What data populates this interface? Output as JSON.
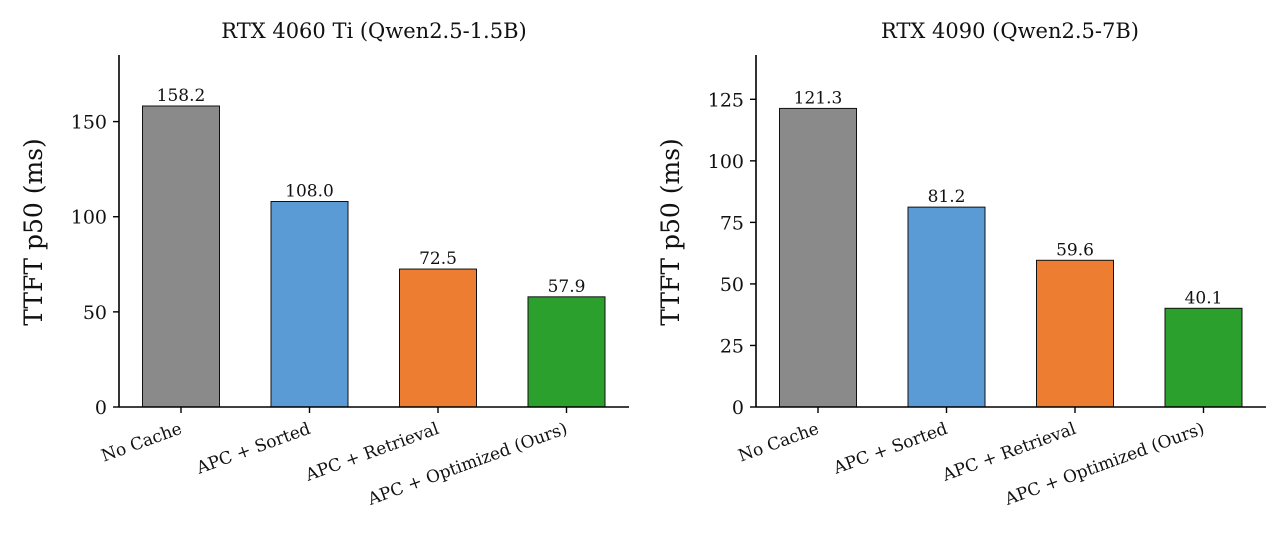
{
  "chart_data": [
    {
      "type": "bar",
      "title": "RTX 4060 Ti (Qwen2.5-1.5B)",
      "xlabel": "",
      "ylabel": "TTFT p50 (ms)",
      "categories": [
        "No Cache",
        "APC + Sorted",
        "APC + Retrieval",
        "APC + Optimized (Ours)"
      ],
      "values": [
        158.2,
        108.0,
        72.5,
        57.9
      ],
      "value_labels": [
        "158.2",
        "108.0",
        "72.5",
        "57.9"
      ],
      "colors": [
        "#8a8a8a",
        "#5b9bd5",
        "#ed7d31",
        "#2ca02c"
      ],
      "ylim": [
        0,
        185
      ],
      "yticks": [
        0,
        50,
        100,
        150
      ],
      "grid": false,
      "legend": "none"
    },
    {
      "type": "bar",
      "title": "RTX 4090 (Qwen2.5-7B)",
      "xlabel": "",
      "ylabel": "TTFT p50 (ms)",
      "categories": [
        "No Cache",
        "APC + Sorted",
        "APC + Retrieval",
        "APC + Optimized (Ours)"
      ],
      "values": [
        121.3,
        81.2,
        59.6,
        40.1
      ],
      "value_labels": [
        "121.3",
        "81.2",
        "59.6",
        "40.1"
      ],
      "colors": [
        "#8a8a8a",
        "#5b9bd5",
        "#ed7d31",
        "#2ca02c"
      ],
      "ylim": [
        0,
        143
      ],
      "yticks": [
        0,
        25,
        50,
        75,
        100,
        125
      ],
      "grid": false,
      "legend": "none"
    }
  ]
}
